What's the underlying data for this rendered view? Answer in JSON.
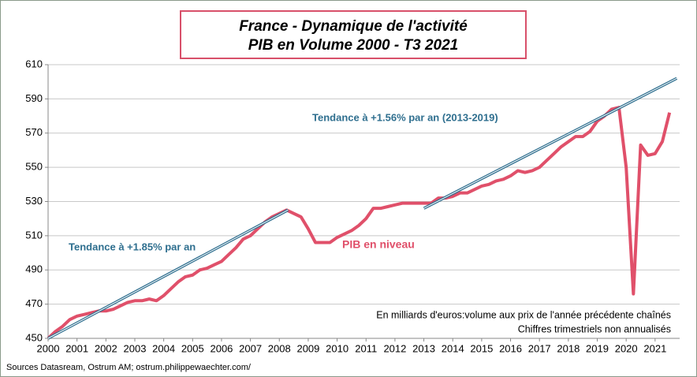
{
  "chart_data": {
    "type": "line",
    "title": "France - Dynamique de l'activité",
    "subtitle": "PIB en Volume 2000 - T3 2021",
    "annotations": [
      "Tendance à +1.56% par an (2013-2019)",
      "Tendance à +1.85% par an",
      "PIB en niveau",
      "En milliards  d'euros:volume aux prix de l'année  précédente chaînés",
      "Chiffres trimestriels  non annualisés"
    ],
    "source": "Sources Datasream, Ostrum AM;  ostrum.philippewaechter.com/",
    "xlim": [
      2000,
      2021.85
    ],
    "xticks": [
      2000,
      2001,
      2002,
      2003,
      2004,
      2005,
      2006,
      2007,
      2008,
      2009,
      2010,
      2011,
      2012,
      2013,
      2014,
      2015,
      2016,
      2017,
      2018,
      2019,
      2020,
      2021
    ],
    "ylim": [
      450,
      610
    ],
    "yticks": [
      450,
      470,
      490,
      510,
      530,
      550,
      570,
      590,
      610
    ],
    "grid": true,
    "series": [
      {
        "name": "PIB en niveau",
        "color": "#e0506a",
        "x": [
          2000,
          2000.25,
          2000.5,
          2000.75,
          2001,
          2001.25,
          2001.5,
          2001.75,
          2002,
          2002.25,
          2002.5,
          2002.75,
          2003,
          2003.25,
          2003.5,
          2003.75,
          2004,
          2004.25,
          2004.5,
          2004.75,
          2005,
          2005.25,
          2005.5,
          2005.75,
          2006,
          2006.25,
          2006.5,
          2006.75,
          2007,
          2007.25,
          2007.5,
          2007.75,
          2008,
          2008.25,
          2008.5,
          2008.75,
          2009,
          2009.25,
          2009.5,
          2009.75,
          2010,
          2010.25,
          2010.5,
          2010.75,
          2011,
          2011.25,
          2011.5,
          2011.75,
          2012,
          2012.25,
          2012.5,
          2012.75,
          2013,
          2013.25,
          2013.5,
          2013.75,
          2014,
          2014.25,
          2014.5,
          2014.75,
          2015,
          2015.25,
          2015.5,
          2015.75,
          2016,
          2016.25,
          2016.5,
          2016.75,
          2017,
          2017.25,
          2017.5,
          2017.75,
          2018,
          2018.25,
          2018.5,
          2018.75,
          2019,
          2019.25,
          2019.5,
          2019.75,
          2020,
          2020.25,
          2020.5,
          2020.75,
          2021,
          2021.25,
          2021.5
        ],
        "values": [
          450,
          454,
          457,
          461,
          463,
          464,
          465,
          466,
          466,
          467,
          469,
          471,
          472,
          472,
          473,
          472,
          475,
          479,
          483,
          486,
          487,
          490,
          491,
          493,
          495,
          499,
          503,
          508,
          510,
          514,
          518,
          521,
          523,
          525,
          523,
          521,
          514,
          506,
          506,
          506,
          509,
          511,
          513,
          516,
          520,
          526,
          526,
          527,
          528,
          529,
          529,
          529,
          529,
          529,
          532,
          532,
          533,
          535,
          535,
          537,
          539,
          540,
          542,
          543,
          545,
          548,
          547,
          548,
          550,
          554,
          558,
          562,
          565,
          568,
          568,
          571,
          577,
          580,
          584,
          585,
          550,
          476,
          563,
          557,
          558,
          565,
          582
        ]
      },
      {
        "name": "Tendance à +1.85% par an",
        "color": "#2f6f8f",
        "x": [
          2000,
          2008.3
        ],
        "values": [
          450,
          525
        ]
      },
      {
        "name": "Tendance à +1.56% par an (2013-2019)",
        "color": "#2f6f8f",
        "x": [
          2013,
          2021.75
        ],
        "values": [
          526,
          602
        ]
      }
    ]
  }
}
